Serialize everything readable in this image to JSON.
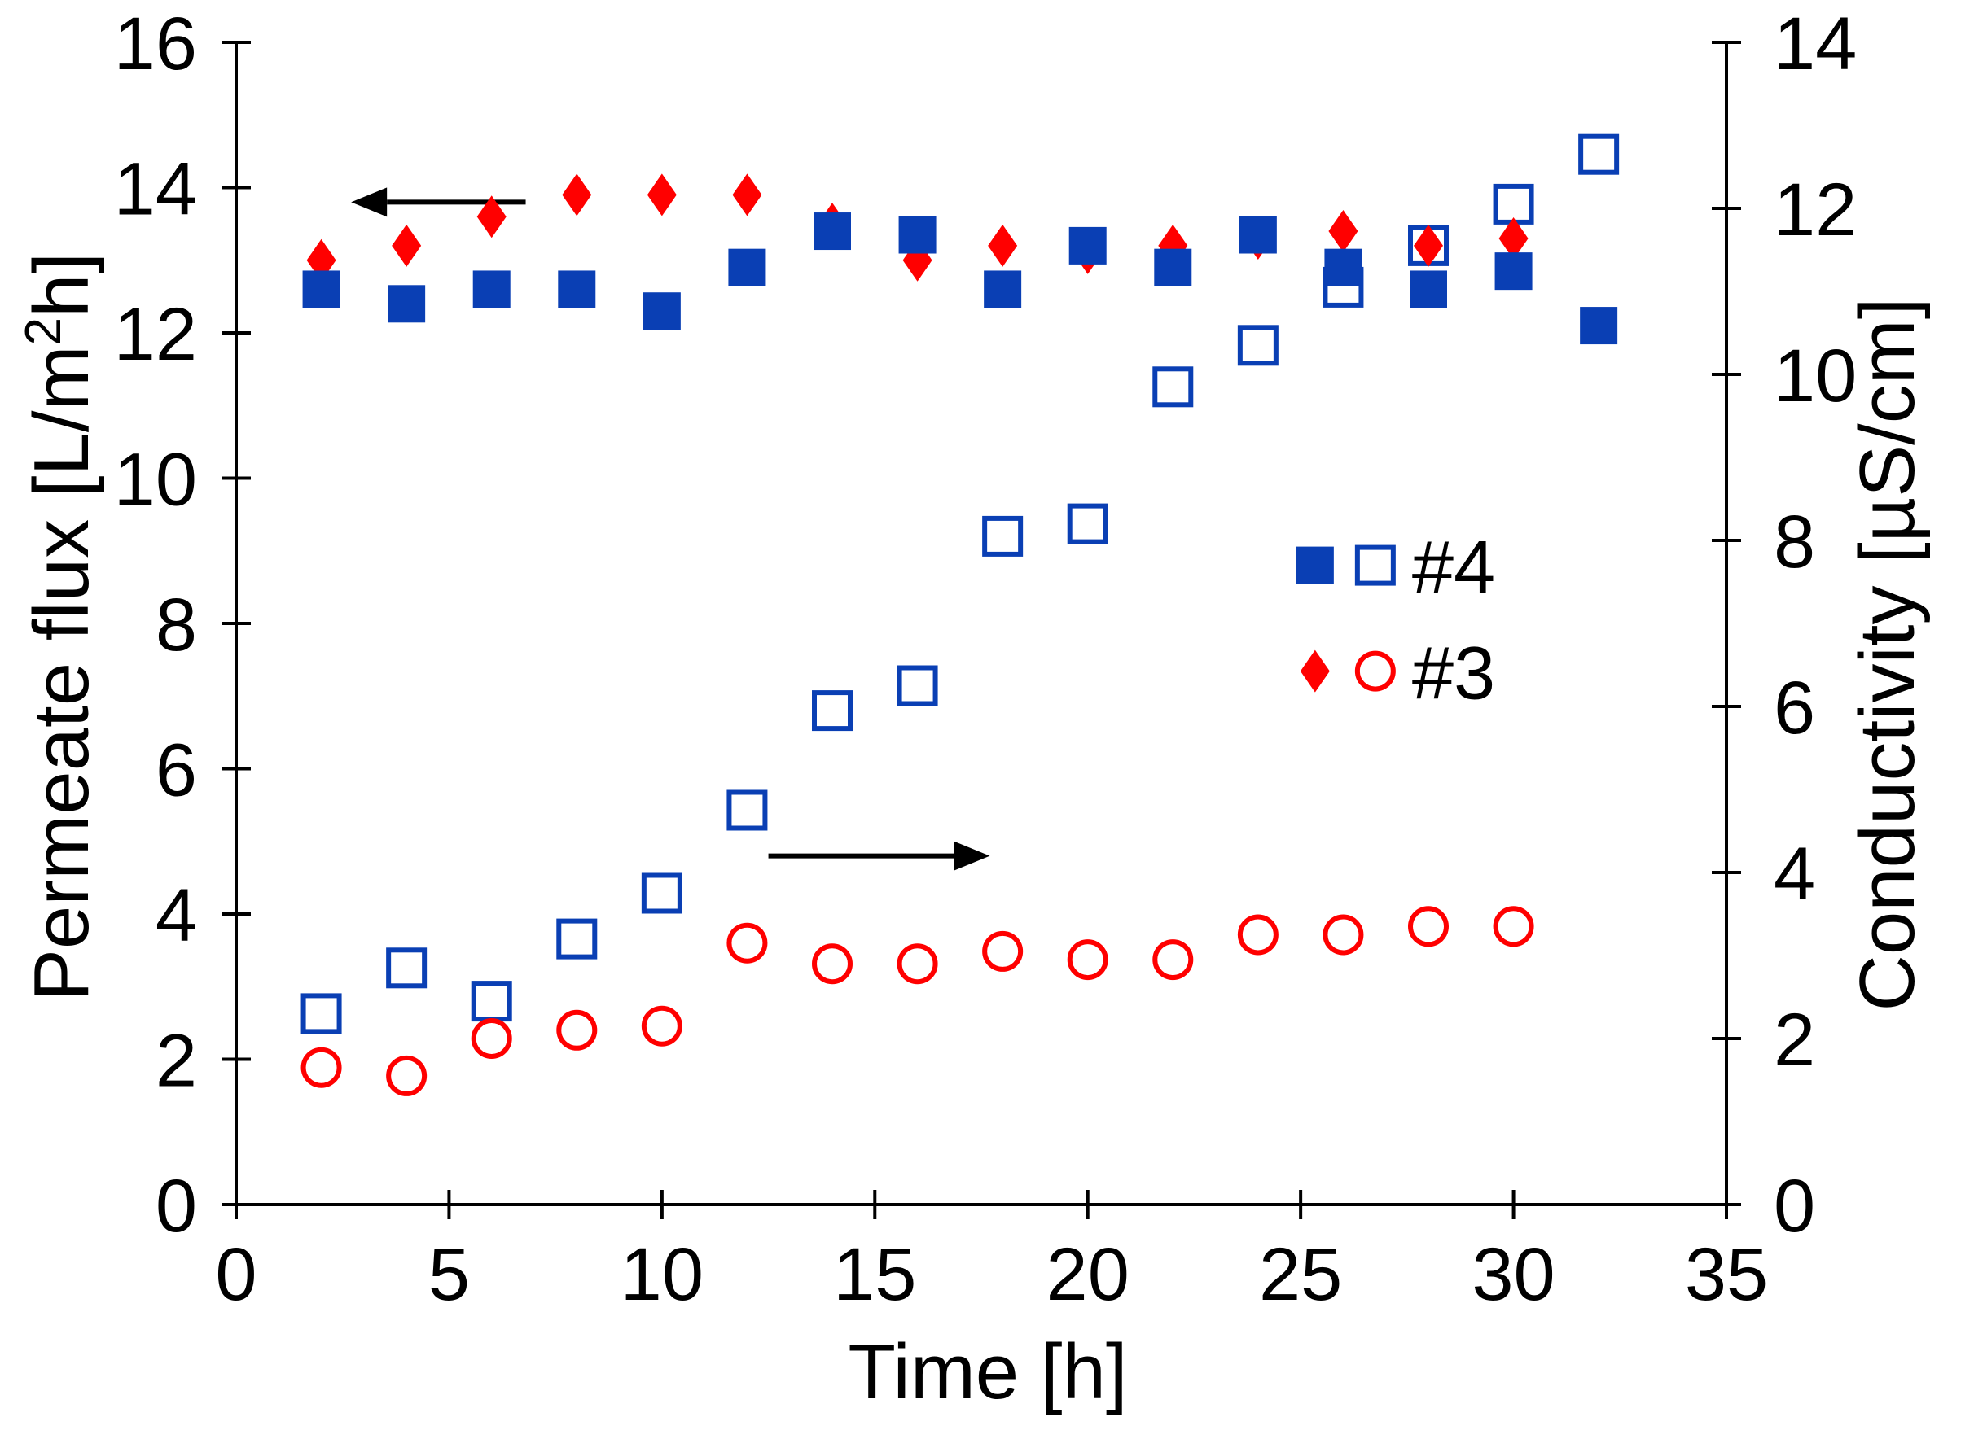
{
  "chart_data": {
    "type": "scatter",
    "title": "",
    "xlabel": "Time [h]",
    "ylabel_left": "Permeate flux [L/m2h]",
    "ylabel_left_parts": {
      "before": "Permeate flux [L/m",
      "superscript": "2",
      "after": "h]"
    },
    "ylabel_right": "Conductivity [µS/cm]",
    "xlim": [
      0,
      35
    ],
    "ylim_left": [
      0,
      16
    ],
    "ylim_right": [
      0,
      14
    ],
    "x_ticks": [
      0,
      5,
      10,
      15,
      20,
      25,
      30,
      35
    ],
    "y_left_ticks": [
      0,
      2,
      4,
      6,
      8,
      10,
      12,
      14,
      16
    ],
    "y_right_ticks": [
      0,
      2,
      4,
      6,
      8,
      10,
      12,
      14
    ],
    "grid": false,
    "legend": {
      "placement": "right-middle",
      "entries": [
        {
          "label": "#4",
          "markers": [
            "filled-square",
            "open-square"
          ],
          "color": "#0a3fb4"
        },
        {
          "label": "#3",
          "markers": [
            "filled-diamond",
            "open-circle"
          ],
          "color": "#ff0000"
        }
      ]
    },
    "annotations": [
      {
        "type": "arrow",
        "direction": "left",
        "meaning": "flux series use left axis",
        "from": {
          "x": 6.8,
          "y_left": 13.8
        },
        "to": {
          "x": 2.7,
          "y_left": 13.8
        }
      },
      {
        "type": "arrow",
        "direction": "right",
        "meaning": "conductivity series use right axis",
        "from": {
          "x": 12.5,
          "y_left": 4.8
        },
        "to": {
          "x": 17.7,
          "y_left": 4.8
        }
      }
    ],
    "series": [
      {
        "name": "#4 Permeate flux",
        "axis": "left",
        "marker": "filled-square",
        "color": "#0a3fb4",
        "x": [
          2,
          4,
          6,
          8,
          10,
          12,
          14,
          16,
          18,
          20,
          22,
          24,
          26,
          28,
          30,
          32
        ],
        "y": [
          12.6,
          12.4,
          12.6,
          12.6,
          12.3,
          12.9,
          13.4,
          13.35,
          12.6,
          13.2,
          12.9,
          13.35,
          12.9,
          12.6,
          12.85,
          12.1
        ]
      },
      {
        "name": "#3 Permeate flux",
        "axis": "left",
        "marker": "filled-diamond",
        "color": "#ff0000",
        "x": [
          2,
          4,
          6,
          8,
          10,
          12,
          14,
          16,
          18,
          20,
          22,
          24,
          26,
          28,
          30
        ],
        "y": [
          13.0,
          13.2,
          13.6,
          13.9,
          13.9,
          13.9,
          13.5,
          13.0,
          13.2,
          13.1,
          13.2,
          13.3,
          13.4,
          13.2,
          13.3
        ]
      },
      {
        "name": "#4 Conductivity",
        "axis": "right",
        "marker": "open-square",
        "color": "#0a3fb4",
        "x": [
          2,
          4,
          6,
          8,
          10,
          12,
          14,
          16,
          18,
          20,
          22,
          24,
          26,
          28,
          30,
          32
        ],
        "y": [
          2.3,
          2.85,
          2.45,
          3.2,
          3.75,
          4.75,
          5.95,
          6.25,
          8.05,
          8.2,
          9.85,
          10.35,
          11.05,
          11.55,
          12.05,
          12.65
        ]
      },
      {
        "name": "#3 Conductivity",
        "axis": "right",
        "marker": "open-circle",
        "color": "#ff0000",
        "x": [
          2,
          4,
          6,
          8,
          10,
          12,
          14,
          16,
          18,
          20,
          22,
          24,
          26,
          28,
          30
        ],
        "y": [
          1.65,
          1.55,
          2.0,
          2.1,
          2.15,
          3.15,
          2.9,
          2.9,
          3.05,
          2.95,
          2.95,
          3.25,
          3.25,
          3.35,
          3.35
        ]
      }
    ]
  }
}
